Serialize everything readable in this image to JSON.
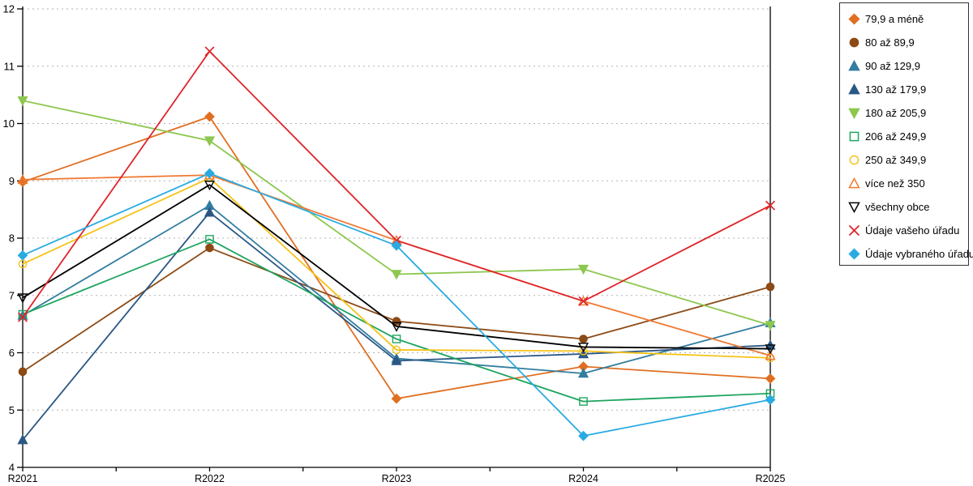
{
  "chart_data": {
    "type": "line",
    "title": "",
    "xlabel": "",
    "ylabel": "",
    "categories": [
      "R2021",
      "R2022",
      "R2023",
      "R2024",
      "R2025"
    ],
    "ylim": [
      4,
      12
    ],
    "ytick_step": 1,
    "grid": "horizontal-dashed",
    "gridline_color": "#b3b3b3",
    "axis_color": "#000000",
    "legend_position": "right",
    "series": [
      {
        "name": "79,9 a méně",
        "color": "#E06F22",
        "marker": "diamond",
        "filled": true,
        "values": [
          8.98,
          10.12,
          5.2,
          5.76,
          5.55
        ]
      },
      {
        "name": "80 až 89,9",
        "color": "#8C4A15",
        "marker": "circle",
        "filled": true,
        "values": [
          5.67,
          7.83,
          6.55,
          6.24,
          7.15
        ]
      },
      {
        "name": "90 až 129,9",
        "color": "#327DA0",
        "marker": "triangle-up",
        "filled": true,
        "values": [
          6.65,
          8.57,
          5.9,
          5.64,
          6.52
        ]
      },
      {
        "name": "130 až 179,9",
        "color": "#2A5784",
        "marker": "triangle-up",
        "filled": true,
        "values": [
          4.48,
          8.45,
          5.86,
          5.98,
          6.13
        ]
      },
      {
        "name": "180 až 205,9",
        "color": "#8DC74F",
        "marker": "triangle-down",
        "filled": true,
        "values": [
          10.4,
          9.7,
          7.37,
          7.46,
          6.48
        ]
      },
      {
        "name": "206 až 249,9",
        "color": "#1EA55F",
        "marker": "square",
        "filled": false,
        "values": [
          6.67,
          7.98,
          6.24,
          5.15,
          5.29
        ]
      },
      {
        "name": "250 až 349,9",
        "color": "#F5C318",
        "marker": "circle",
        "filled": false,
        "values": [
          7.55,
          9.05,
          6.05,
          6.03,
          5.91
        ]
      },
      {
        "name": "více než 350",
        "color": "#EF7832",
        "marker": "triangle-up",
        "filled": false,
        "values": [
          9.02,
          9.1,
          7.96,
          6.9,
          5.95
        ]
      },
      {
        "name": "všechny obce",
        "color": "#000000",
        "marker": "triangle-down",
        "filled": false,
        "values": [
          6.96,
          8.93,
          6.46,
          6.1,
          6.07
        ]
      },
      {
        "name": "Údaje vašeho úřadu",
        "color": "#DF252A",
        "marker": "x",
        "filled": false,
        "values": [
          6.62,
          11.26,
          7.96,
          6.9,
          8.57
        ]
      },
      {
        "name": "Údaje vybraného úřadu",
        "color": "#29ABE2",
        "marker": "diamond",
        "filled": true,
        "values": [
          7.7,
          9.13,
          7.87,
          4.55,
          5.18
        ]
      }
    ]
  }
}
